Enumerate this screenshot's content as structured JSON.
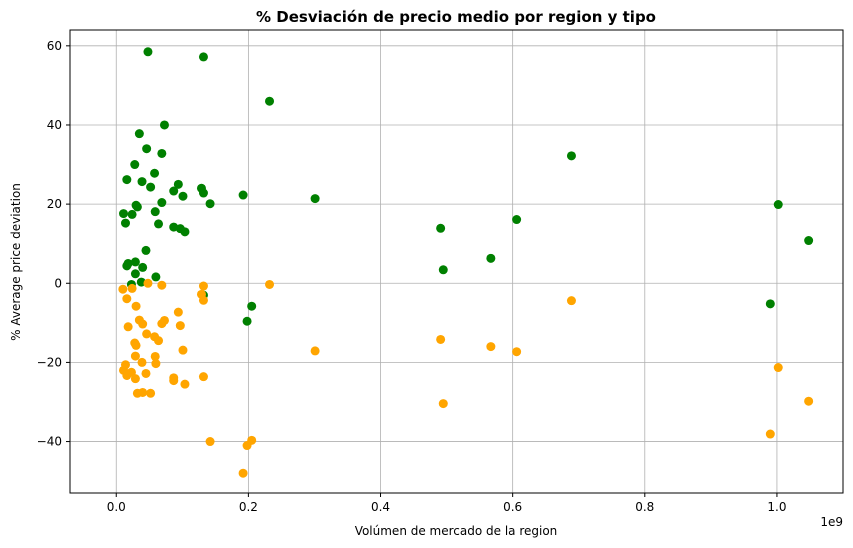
{
  "chart_data": {
    "type": "scatter",
    "title": "% Desviación de precio medio por region y tipo",
    "xlabel": "Volúmen de mercado de la region",
    "ylabel": "% Average price deviation",
    "x_offset_label": "1e9",
    "xlim": [
      -0.07,
      1.1
    ],
    "ylim": [
      -53,
      64
    ],
    "grid": true,
    "x_ticks": [
      0.0,
      0.2,
      0.4,
      0.6,
      0.8,
      1.0
    ],
    "x_tick_labels": [
      "0.0",
      "0.2",
      "0.4",
      "0.6",
      "0.8",
      "1.0"
    ],
    "y_ticks": [
      -40,
      -20,
      0,
      20,
      40,
      60
    ],
    "y_tick_labels": [
      "−40",
      "−20",
      "0",
      "20",
      "40",
      "60"
    ],
    "series": [
      {
        "color": "#008000",
        "points": [
          [
            0.048,
            58.5
          ],
          [
            0.132,
            57.2
          ],
          [
            0.232,
            46.0
          ],
          [
            0.073,
            40.0
          ],
          [
            0.035,
            37.8
          ],
          [
            0.046,
            34.0
          ],
          [
            0.069,
            32.8
          ],
          [
            0.028,
            30.0
          ],
          [
            0.058,
            27.8
          ],
          [
            0.016,
            26.2
          ],
          [
            0.039,
            25.7
          ],
          [
            0.052,
            24.3
          ],
          [
            0.094,
            25.0
          ],
          [
            0.129,
            24.0
          ],
          [
            0.087,
            23.3
          ],
          [
            0.132,
            22.8
          ],
          [
            0.192,
            22.3
          ],
          [
            0.101,
            22.0
          ],
          [
            0.301,
            21.4
          ],
          [
            0.069,
            20.4
          ],
          [
            0.142,
            20.1
          ],
          [
            0.03,
            19.7
          ],
          [
            0.032,
            19.3
          ],
          [
            1.002,
            19.9
          ],
          [
            0.059,
            18.1
          ],
          [
            0.011,
            17.6
          ],
          [
            0.024,
            17.4
          ],
          [
            0.606,
            16.1
          ],
          [
            0.014,
            15.2
          ],
          [
            0.064,
            15.0
          ],
          [
            0.087,
            14.2
          ],
          [
            0.097,
            13.8
          ],
          [
            0.491,
            13.9
          ],
          [
            0.104,
            13.0
          ],
          [
            1.048,
            10.8
          ],
          [
            0.045,
            8.3
          ],
          [
            0.567,
            6.3
          ],
          [
            0.018,
            5.0
          ],
          [
            0.016,
            4.4
          ],
          [
            0.029,
            5.4
          ],
          [
            0.04,
            4.0
          ],
          [
            0.495,
            3.4
          ],
          [
            0.029,
            2.4
          ],
          [
            0.06,
            1.6
          ],
          [
            0.038,
            0.3
          ],
          [
            0.023,
            -0.3
          ],
          [
            0.132,
            -3.0
          ],
          [
            0.205,
            -5.8
          ],
          [
            0.198,
            -9.6
          ],
          [
            0.99,
            -5.2
          ],
          [
            0.689,
            32.2
          ]
        ]
      },
      {
        "color": "#ffa500",
        "points": [
          [
            0.01,
            -1.5
          ],
          [
            0.024,
            -1.3
          ],
          [
            0.048,
            0.0
          ],
          [
            0.069,
            -0.5
          ],
          [
            0.132,
            -0.7
          ],
          [
            0.232,
            -0.3
          ],
          [
            0.689,
            -4.4
          ],
          [
            0.129,
            -2.8
          ],
          [
            0.132,
            -4.3
          ],
          [
            0.016,
            -3.9
          ],
          [
            0.03,
            -5.8
          ],
          [
            0.035,
            -9.3
          ],
          [
            0.04,
            -10.3
          ],
          [
            0.073,
            -9.4
          ],
          [
            0.069,
            -10.2
          ],
          [
            0.094,
            -7.3
          ],
          [
            0.097,
            -10.7
          ],
          [
            0.018,
            -11.0
          ],
          [
            0.046,
            -12.8
          ],
          [
            0.058,
            -13.5
          ],
          [
            0.064,
            -14.5
          ],
          [
            0.028,
            -15.1
          ],
          [
            0.03,
            -15.7
          ],
          [
            0.101,
            -16.9
          ],
          [
            0.301,
            -17.1
          ],
          [
            0.567,
            -16.0
          ],
          [
            0.606,
            -17.3
          ],
          [
            0.491,
            -14.2
          ],
          [
            0.029,
            -18.4
          ],
          [
            0.059,
            -18.5
          ],
          [
            0.06,
            -20.3
          ],
          [
            0.014,
            -20.6
          ],
          [
            0.039,
            -20.0
          ],
          [
            0.011,
            -22.0
          ],
          [
            0.023,
            -22.5
          ],
          [
            0.016,
            -23.3
          ],
          [
            0.029,
            -24.1
          ],
          [
            0.045,
            -22.8
          ],
          [
            0.087,
            -23.9
          ],
          [
            0.087,
            -24.6
          ],
          [
            0.132,
            -23.6
          ],
          [
            0.104,
            -25.5
          ],
          [
            0.032,
            -27.8
          ],
          [
            0.04,
            -27.6
          ],
          [
            0.052,
            -27.8
          ],
          [
            1.002,
            -21.3
          ],
          [
            0.495,
            -30.4
          ],
          [
            1.048,
            -29.8
          ],
          [
            0.142,
            -40.0
          ],
          [
            0.205,
            -39.7
          ],
          [
            0.198,
            -41.0
          ],
          [
            0.192,
            -48.0
          ],
          [
            0.99,
            -38.1
          ]
        ]
      }
    ]
  }
}
